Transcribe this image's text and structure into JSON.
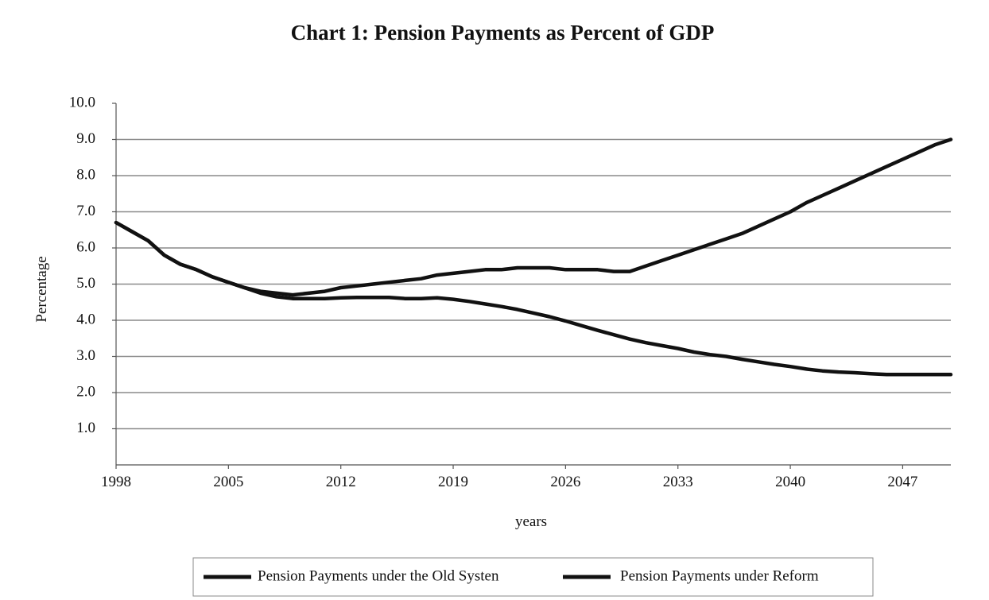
{
  "chart_data": {
    "type": "line",
    "title": "Chart 1:  Pension Payments as Percent of GDP",
    "xlabel": "years",
    "ylabel": "Percentage",
    "xlim": [
      1998,
      2050
    ],
    "ylim": [
      0,
      10
    ],
    "x_ticks": [
      "1998",
      "2005",
      "2012",
      "2019",
      "2026",
      "2033",
      "2040",
      "2047"
    ],
    "y_ticks": [
      "10.0",
      "9.0",
      "8.0",
      "7.0",
      "6.0",
      "5.0",
      "4.0",
      "3.0",
      "2.0",
      "1.0"
    ],
    "grid": true,
    "legend_position": "bottom",
    "x": [
      1998,
      1999,
      2000,
      2001,
      2002,
      2003,
      2004,
      2005,
      2006,
      2007,
      2008,
      2009,
      2010,
      2011,
      2012,
      2013,
      2014,
      2015,
      2016,
      2017,
      2018,
      2019,
      2020,
      2021,
      2022,
      2023,
      2024,
      2025,
      2026,
      2027,
      2028,
      2029,
      2030,
      2031,
      2032,
      2033,
      2034,
      2035,
      2036,
      2037,
      2038,
      2039,
      2040,
      2041,
      2042,
      2043,
      2044,
      2045,
      2046,
      2047,
      2048,
      2049,
      2050
    ],
    "series": [
      {
        "name": "Pension Payments under the Old Systen",
        "values": [
          6.7,
          6.45,
          6.2,
          5.8,
          5.55,
          5.4,
          5.2,
          5.05,
          4.9,
          4.8,
          4.75,
          4.7,
          4.75,
          4.8,
          4.9,
          4.95,
          5.0,
          5.05,
          5.1,
          5.15,
          5.25,
          5.3,
          5.35,
          5.4,
          5.4,
          5.45,
          5.45,
          5.45,
          5.4,
          5.4,
          5.4,
          5.35,
          5.35,
          5.5,
          5.65,
          5.8,
          5.95,
          6.1,
          6.25,
          6.4,
          6.6,
          6.8,
          7.0,
          7.25,
          7.45,
          7.65,
          7.85,
          8.05,
          8.25,
          8.45,
          8.65,
          8.85,
          9.0
        ]
      },
      {
        "name": "Pension Payments under Reform",
        "values": [
          6.7,
          6.45,
          6.2,
          5.8,
          5.55,
          5.4,
          5.2,
          5.05,
          4.9,
          4.75,
          4.65,
          4.6,
          4.6,
          4.6,
          4.62,
          4.63,
          4.63,
          4.63,
          4.6,
          4.6,
          4.62,
          4.58,
          4.52,
          4.45,
          4.38,
          4.3,
          4.2,
          4.1,
          3.98,
          3.85,
          3.72,
          3.6,
          3.48,
          3.38,
          3.3,
          3.22,
          3.12,
          3.05,
          3.0,
          2.92,
          2.85,
          2.78,
          2.72,
          2.65,
          2.6,
          2.57,
          2.55,
          2.52,
          2.5,
          2.5,
          2.5,
          2.5,
          2.5
        ]
      }
    ]
  }
}
